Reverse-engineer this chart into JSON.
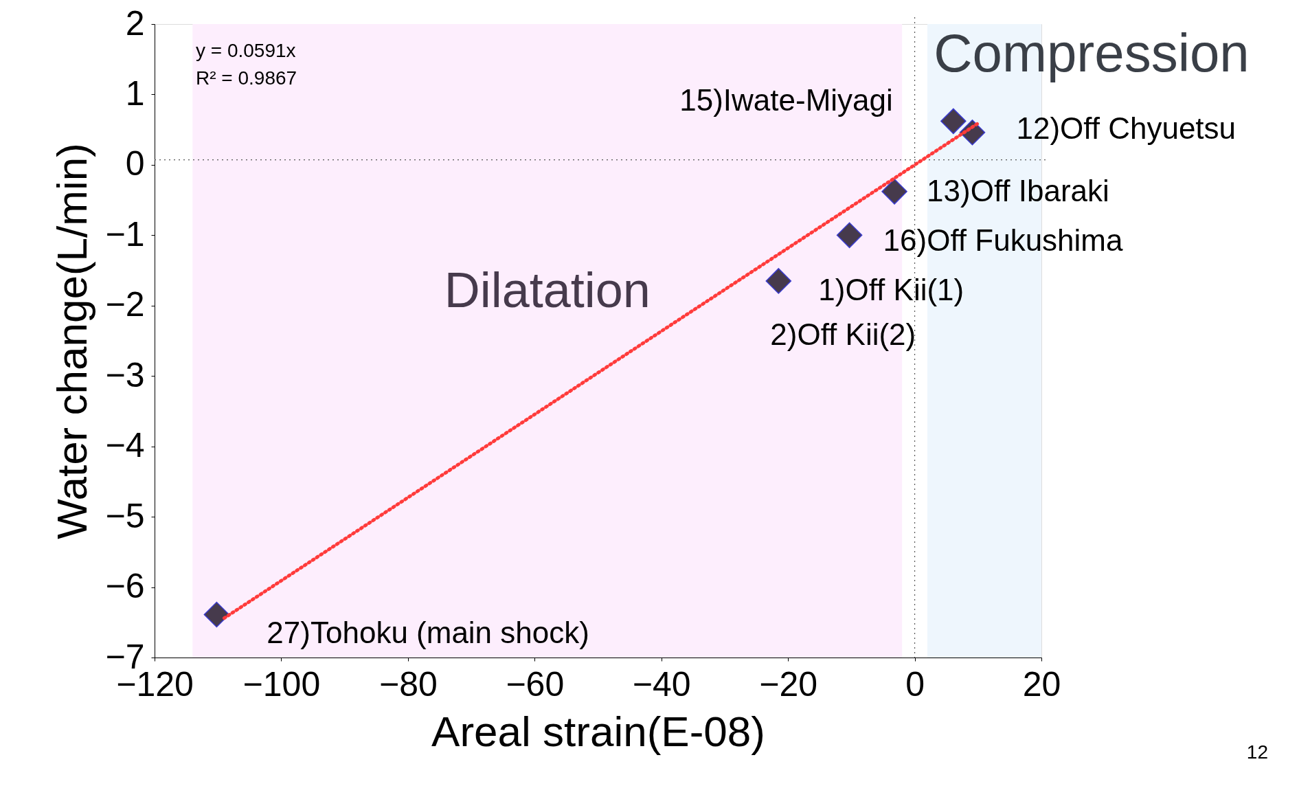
{
  "chart_data": {
    "type": "scatter",
    "xlabel": "Areal strain(E-08)",
    "ylabel": "Water change(L/min)",
    "xlim": [
      -120,
      20
    ],
    "xticks": [
      -120,
      -100,
      -80,
      -60,
      -40,
      -20,
      0,
      20
    ],
    "ylim": [
      -7,
      2
    ],
    "yticks": [
      -7,
      -6,
      -5,
      -4,
      -3,
      -2,
      -1,
      0,
      1,
      2
    ],
    "grid": false,
    "marker": "diamond",
    "series": [
      {
        "color": "#463a4c",
        "x": [
          6.1,
          9.1,
          -3.2,
          -10.3,
          -21.5,
          -110.2
        ],
        "values": [
          0.62,
          0.46,
          -0.38,
          -1.0,
          -1.65,
          -6.39
        ]
      },
      {
        "type": "line",
        "marker": "none",
        "color": "#ff3b3b",
        "line_style": "dotted",
        "x": [
          -109,
          10
        ],
        "values": [
          -6.44,
          0.59
        ]
      }
    ],
    "ref_lines": [
      {
        "axis": "x",
        "value": 0,
        "line_style": "dotted",
        "color": "#555555"
      },
      {
        "axis": "y",
        "value": 0.07,
        "line_style": "dotted",
        "color": "#555555"
      }
    ],
    "bands": [
      {
        "axis": "x",
        "from": -114,
        "to": -2,
        "label": "Dilatation",
        "color": "#fdeefd"
      },
      {
        "axis": "x",
        "from": 2,
        "to": 20,
        "label": "Compression",
        "color": "#eef6fd"
      }
    ],
    "annotations": [
      "y = 0.0591x",
      "R² = 0.9867",
      {
        "text": "15)Iwate-Miyagi",
        "x": 6.1,
        "y": 0.62
      },
      {
        "text": "12)Off Chyuetsu",
        "x": 9.1,
        "y": 0.46
      },
      {
        "text": "13)Off Ibaraki",
        "x": -3.2,
        "y": -0.38
      },
      {
        "text": "16)Off Fukushima",
        "x": -10.3,
        "y": -1.0
      },
      {
        "text": "1)Off Kii(1)",
        "x": -21.5,
        "y": -1.65
      },
      {
        "text": "2)Off Kii(2)",
        "x": -21.5,
        "y": -1.65
      },
      {
        "text": "27)Tohoku (main shock)",
        "x": -110.2,
        "y": -6.39
      },
      "12"
    ]
  }
}
